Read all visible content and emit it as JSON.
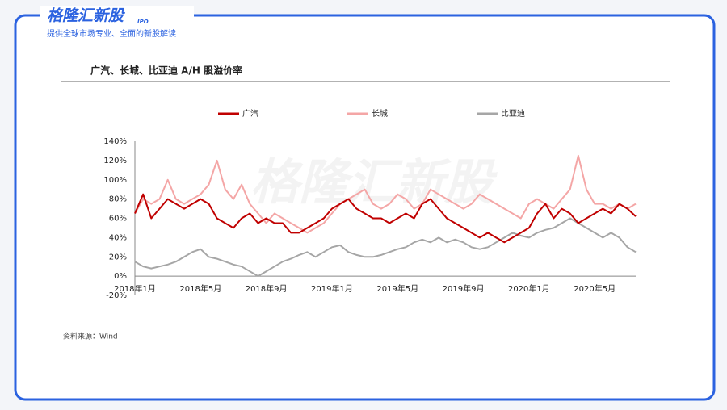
{
  "header": {
    "logo": "格隆汇新股",
    "logo_tag": "IPO",
    "tagline": "提供全球市场专业、全面的新股解读"
  },
  "chart_data": {
    "type": "line",
    "title": "广汽、长城、比亚迪 A/H 股溢价率",
    "source": "资料来源：Wind",
    "watermark": "格隆汇新股",
    "x": [
      "2018年1月",
      null,
      null,
      null,
      null,
      null,
      null,
      null,
      "2018年5月",
      null,
      null,
      null,
      null,
      null,
      null,
      null,
      "2018年9月",
      null,
      null,
      null,
      null,
      null,
      null,
      null,
      "2019年1月",
      null,
      null,
      null,
      null,
      null,
      null,
      null,
      "2019年5月",
      null,
      null,
      null,
      null,
      null,
      null,
      null,
      "2019年9月",
      null,
      null,
      null,
      null,
      null,
      null,
      null,
      "2020年1月",
      null,
      null,
      null,
      null,
      null,
      null,
      null,
      "2020年5月",
      null,
      null,
      null,
      null,
      null
    ],
    "series": [
      {
        "name": "广汽",
        "color": "#c00000",
        "values": [
          65,
          85,
          60,
          70,
          80,
          75,
          70,
          75,
          80,
          75,
          60,
          55,
          50,
          60,
          65,
          55,
          60,
          55,
          55,
          45,
          45,
          50,
          55,
          60,
          70,
          75,
          80,
          70,
          65,
          60,
          60,
          55,
          60,
          65,
          60,
          75,
          80,
          70,
          60,
          55,
          50,
          45,
          40,
          45,
          40,
          35,
          40,
          45,
          50,
          65,
          75,
          60,
          70,
          65,
          55,
          60,
          65,
          70,
          65,
          75,
          70,
          62
        ]
      },
      {
        "name": "长城",
        "color": "#f4a6a6",
        "values": [
          65,
          80,
          75,
          80,
          100,
          80,
          75,
          80,
          85,
          95,
          120,
          90,
          80,
          95,
          75,
          65,
          55,
          65,
          60,
          55,
          50,
          45,
          50,
          55,
          65,
          75,
          80,
          85,
          90,
          75,
          70,
          75,
          85,
          80,
          70,
          75,
          90,
          85,
          80,
          75,
          70,
          75,
          85,
          80,
          75,
          70,
          65,
          60,
          75,
          80,
          75,
          70,
          80,
          90,
          125,
          90,
          75,
          75,
          70,
          75,
          70,
          75
        ]
      },
      {
        "name": "比亚迪",
        "color": "#a6a6a6",
        "values": [
          15,
          10,
          8,
          10,
          12,
          15,
          20,
          25,
          28,
          20,
          18,
          15,
          12,
          10,
          5,
          0,
          5,
          10,
          15,
          18,
          22,
          25,
          20,
          25,
          30,
          32,
          25,
          22,
          20,
          20,
          22,
          25,
          28,
          30,
          35,
          38,
          35,
          40,
          35,
          38,
          35,
          30,
          28,
          30,
          35,
          40,
          45,
          42,
          40,
          45,
          48,
          50,
          55,
          60,
          55,
          50,
          45,
          40,
          45,
          40,
          30,
          25
        ]
      }
    ],
    "ylim": [
      -20,
      140
    ],
    "yticks": [
      {
        "value": -20,
        "label": "-20%"
      },
      {
        "value": 0,
        "label": "0%"
      },
      {
        "value": 20,
        "label": "20%"
      },
      {
        "value": 40,
        "label": "40%"
      },
      {
        "value": 60,
        "label": "60%"
      },
      {
        "value": 80,
        "label": "80%"
      },
      {
        "value": 100,
        "label": "100%"
      },
      {
        "value": 120,
        "label": "120%"
      },
      {
        "value": 140,
        "label": "140%"
      }
    ],
    "legend": "top"
  }
}
